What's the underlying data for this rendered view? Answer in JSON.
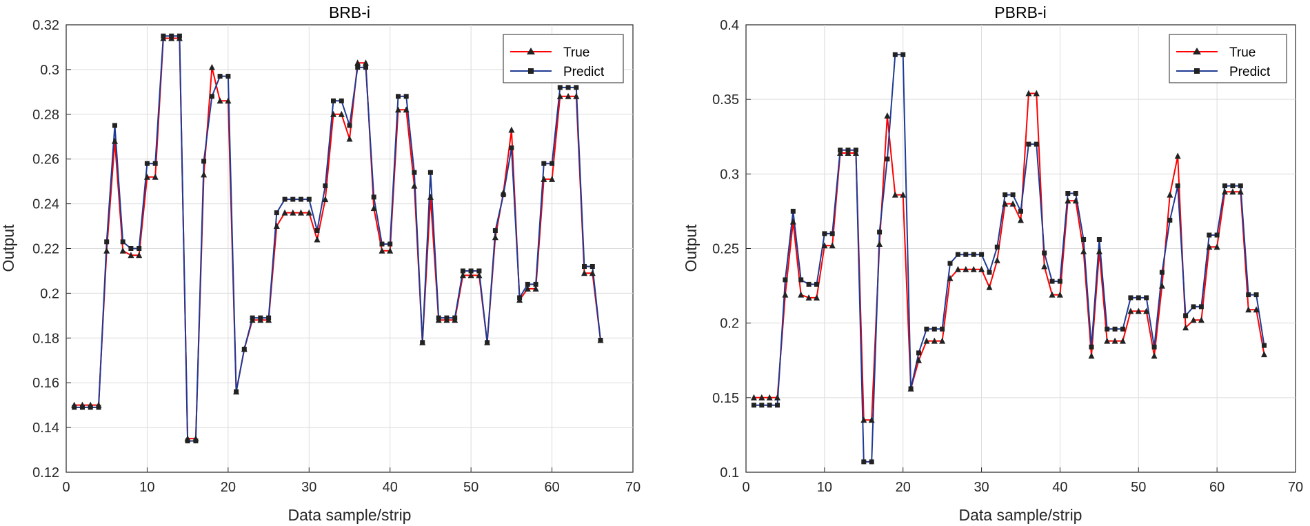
{
  "chart_data": [
    {
      "type": "line",
      "title": "BRB-i",
      "xlabel": "Data sample/strip",
      "ylabel": "Output",
      "xlim": [
        0,
        70
      ],
      "ylim": [
        0.12,
        0.32
      ],
      "xticks": [
        0,
        10,
        20,
        30,
        40,
        50,
        60,
        70
      ],
      "yticks": [
        0.12,
        0.14,
        0.16,
        0.18,
        0.2,
        0.22,
        0.24,
        0.26,
        0.28,
        0.3,
        0.32
      ],
      "ytick_labels": [
        "0.12",
        "0.14",
        "0.16",
        "0.18",
        "0.2",
        "0.22",
        "0.24",
        "0.26",
        "0.28",
        "0.3",
        "0.32"
      ],
      "grid": true,
      "legend_position": "top-right",
      "series": [
        {
          "name": "True",
          "color": "#ff0000",
          "marker": "triangle",
          "values": [
            0.15,
            0.15,
            0.15,
            0.15,
            0.219,
            0.268,
            0.219,
            0.217,
            0.217,
            0.252,
            0.252,
            0.314,
            0.314,
            0.314,
            0.135,
            0.135,
            0.253,
            0.301,
            0.286,
            0.286,
            0.156,
            0.175,
            0.188,
            0.188,
            0.188,
            0.23,
            0.236,
            0.236,
            0.236,
            0.236,
            0.224,
            0.242,
            0.28,
            0.28,
            0.269,
            0.303,
            0.303,
            0.238,
            0.219,
            0.219,
            0.282,
            0.282,
            0.248,
            0.178,
            0.243,
            0.188,
            0.188,
            0.188,
            0.208,
            0.208,
            0.208,
            0.178,
            0.225,
            0.245,
            0.273,
            0.197,
            0.202,
            0.202,
            0.251,
            0.251,
            0.288,
            0.288,
            0.288,
            0.209,
            0.209,
            0.179
          ]
        },
        {
          "name": "Predict",
          "color": "#1f3a93",
          "marker": "square",
          "values": [
            0.149,
            0.149,
            0.149,
            0.149,
            0.223,
            0.275,
            0.223,
            0.22,
            0.22,
            0.258,
            0.258,
            0.315,
            0.315,
            0.315,
            0.134,
            0.134,
            0.259,
            0.288,
            0.297,
            0.297,
            0.156,
            0.175,
            0.189,
            0.189,
            0.189,
            0.236,
            0.242,
            0.242,
            0.242,
            0.242,
            0.228,
            0.248,
            0.286,
            0.286,
            0.275,
            0.301,
            0.301,
            0.243,
            0.222,
            0.222,
            0.288,
            0.288,
            0.254,
            0.178,
            0.254,
            0.189,
            0.189,
            0.189,
            0.21,
            0.21,
            0.21,
            0.178,
            0.228,
            0.244,
            0.265,
            0.198,
            0.204,
            0.204,
            0.258,
            0.258,
            0.292,
            0.292,
            0.292,
            0.212,
            0.212,
            0.179
          ]
        }
      ]
    },
    {
      "type": "line",
      "title": "PBRB-i",
      "xlabel": "Data sample/strip",
      "ylabel": "Output",
      "xlim": [
        0,
        70
      ],
      "ylim": [
        0.1,
        0.4
      ],
      "xticks": [
        0,
        10,
        20,
        30,
        40,
        50,
        60,
        70
      ],
      "yticks": [
        0.1,
        0.15,
        0.2,
        0.25,
        0.3,
        0.35,
        0.4
      ],
      "ytick_labels": [
        "0.1",
        "0.15",
        "0.2",
        "0.25",
        "0.3",
        "0.35",
        "0.4"
      ],
      "grid": true,
      "legend_position": "top-right",
      "series": [
        {
          "name": "True",
          "color": "#ff0000",
          "marker": "triangle",
          "values": [
            0.15,
            0.15,
            0.15,
            0.15,
            0.219,
            0.268,
            0.219,
            0.217,
            0.217,
            0.252,
            0.252,
            0.314,
            0.314,
            0.314,
            0.135,
            0.135,
            0.253,
            0.339,
            0.286,
            0.286,
            0.156,
            0.175,
            0.188,
            0.188,
            0.188,
            0.23,
            0.236,
            0.236,
            0.236,
            0.236,
            0.224,
            0.242,
            0.28,
            0.28,
            0.269,
            0.354,
            0.354,
            0.238,
            0.219,
            0.219,
            0.282,
            0.282,
            0.248,
            0.178,
            0.248,
            0.188,
            0.188,
            0.188,
            0.208,
            0.208,
            0.208,
            0.178,
            0.225,
            0.286,
            0.312,
            0.197,
            0.202,
            0.202,
            0.251,
            0.251,
            0.288,
            0.288,
            0.288,
            0.209,
            0.209,
            0.179
          ]
        },
        {
          "name": "Predict",
          "color": "#1f3a93",
          "marker": "square",
          "values": [
            0.145,
            0.145,
            0.145,
            0.145,
            0.229,
            0.275,
            0.229,
            0.226,
            0.226,
            0.26,
            0.26,
            0.316,
            0.316,
            0.316,
            0.107,
            0.107,
            0.261,
            0.31,
            0.38,
            0.38,
            0.156,
            0.18,
            0.196,
            0.196,
            0.196,
            0.24,
            0.246,
            0.246,
            0.246,
            0.246,
            0.234,
            0.251,
            0.286,
            0.286,
            0.275,
            0.32,
            0.32,
            0.247,
            0.228,
            0.228,
            0.287,
            0.287,
            0.256,
            0.184,
            0.256,
            0.196,
            0.196,
            0.196,
            0.217,
            0.217,
            0.217,
            0.184,
            0.234,
            0.269,
            0.292,
            0.205,
            0.211,
            0.211,
            0.259,
            0.259,
            0.292,
            0.292,
            0.292,
            0.219,
            0.219,
            0.185
          ]
        }
      ]
    }
  ]
}
